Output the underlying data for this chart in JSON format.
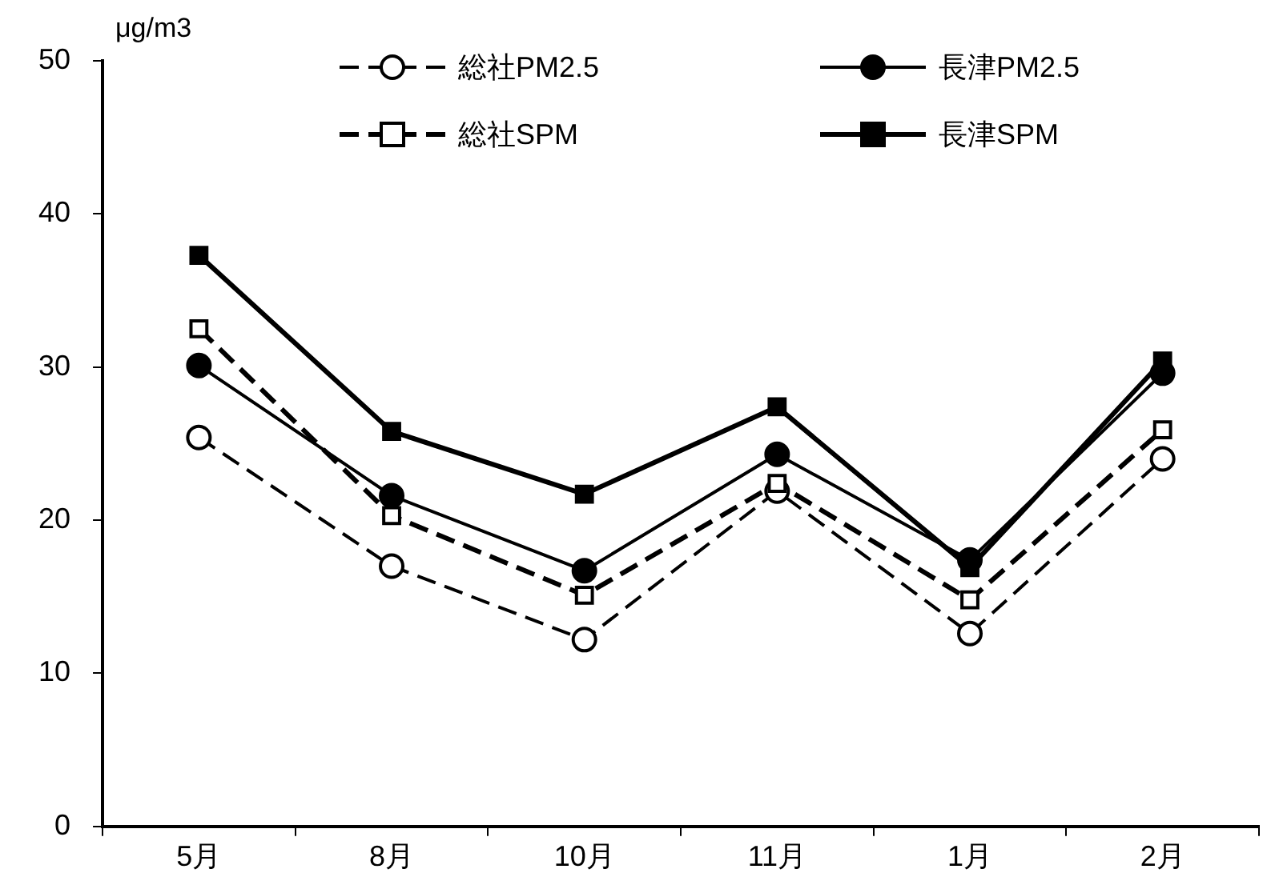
{
  "chart_data": {
    "type": "line",
    "ylabel": "μg/m3",
    "categories": [
      "5月",
      "8月",
      "10月",
      "11月",
      "1月",
      "2月"
    ],
    "ylim": [
      0,
      50
    ],
    "yticks": [
      0,
      10,
      20,
      30,
      40,
      50
    ],
    "grid": false,
    "legend": "top right",
    "series": [
      {
        "name": "総社PM2.5",
        "color": "#000000",
        "marker": "circle",
        "line_style": "dashed",
        "values": [
          25.4,
          17.0,
          12.2,
          21.9,
          12.6,
          24.0
        ]
      },
      {
        "name": "長津PM2.5",
        "color": "#000000",
        "marker": "circle",
        "line_style": "solid",
        "values": [
          30.1,
          21.6,
          16.7,
          24.3,
          17.4,
          29.6
        ]
      },
      {
        "name": "総社SPM",
        "color": "#000000",
        "marker": "square",
        "line_style": "dashed",
        "values": [
          32.5,
          20.3,
          15.1,
          22.4,
          14.8,
          25.9
        ]
      },
      {
        "name": "長津SPM",
        "color": "#000000",
        "marker": "square",
        "line_style": "solid",
        "values": [
          37.3,
          25.8,
          21.7,
          27.4,
          16.9,
          30.4
        ]
      }
    ]
  }
}
